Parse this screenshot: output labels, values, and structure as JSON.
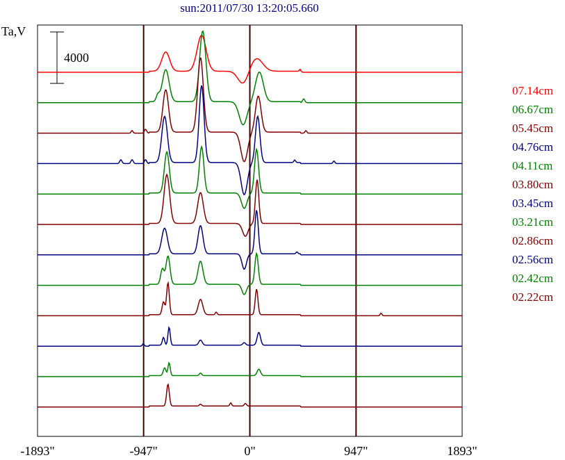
{
  "chart_data": {
    "type": "line",
    "title": "sun:2011/07/30 13:20:05.660",
    "ylabel": "Ta,V",
    "scale_bar_label": "4000",
    "xlim": [
      -1893,
      1893
    ],
    "xticks": [
      {
        "value": -1893,
        "label": "-1893\""
      },
      {
        "value": -947,
        "label": "-947\""
      },
      {
        "value": 0,
        "label": "0\""
      },
      {
        "value": 947,
        "label": "947\""
      },
      {
        "value": 1893,
        "label": "1893\""
      }
    ],
    "vlines": [
      -947,
      0,
      947
    ],
    "grid": false,
    "legend_position": "right",
    "colors": {
      "red": "#ff0000",
      "green": "#008000",
      "maroon": "#800000",
      "navy": "#000080"
    },
    "series": [
      {
        "name": "07.14cm",
        "color": "#ff0000",
        "peaks": [
          {
            "x": -750,
            "h": 1500,
            "w": 35
          },
          {
            "x": -430,
            "h": 2800,
            "w": 40
          },
          {
            "x": -60,
            "h": -1000,
            "w": 45
          },
          {
            "x": 60,
            "h": 1000,
            "w": 55
          },
          {
            "x": 450,
            "h": 150,
            "w": 8
          }
        ]
      },
      {
        "name": "06.67cm",
        "color": "#008000",
        "peaks": [
          {
            "x": -820,
            "h": 500,
            "w": 15
          },
          {
            "x": -750,
            "h": 2500,
            "w": 30
          },
          {
            "x": -420,
            "h": 5500,
            "w": 28
          },
          {
            "x": -60,
            "h": -1800,
            "w": 35
          },
          {
            "x": 85,
            "h": 2300,
            "w": 35
          },
          {
            "x": 480,
            "h": 300,
            "w": 10
          }
        ]
      },
      {
        "name": "05.45cm",
        "color": "#800000",
        "peaks": [
          {
            "x": -1050,
            "h": 200,
            "w": 8
          },
          {
            "x": -930,
            "h": 300,
            "w": 10
          },
          {
            "x": -750,
            "h": 3300,
            "w": 25
          },
          {
            "x": -440,
            "h": 5800,
            "w": 25
          },
          {
            "x": -50,
            "h": -2300,
            "w": 30
          },
          {
            "x": 75,
            "h": 2800,
            "w": 25
          },
          {
            "x": 500,
            "h": 200,
            "w": 8
          }
        ]
      },
      {
        "name": "04.76cm",
        "color": "#000080",
        "peaks": [
          {
            "x": -1150,
            "h": 300,
            "w": 10
          },
          {
            "x": -1050,
            "h": 300,
            "w": 10
          },
          {
            "x": -930,
            "h": 300,
            "w": 10
          },
          {
            "x": -760,
            "h": 3600,
            "w": 25
          },
          {
            "x": -430,
            "h": 6000,
            "w": 22
          },
          {
            "x": -50,
            "h": -2500,
            "w": 28
          },
          {
            "x": 70,
            "h": 3600,
            "w": 20
          },
          {
            "x": 400,
            "h": 200,
            "w": 8
          },
          {
            "x": 750,
            "h": 200,
            "w": 8
          }
        ]
      },
      {
        "name": "04.11cm",
        "color": "#008000",
        "peaks": [
          {
            "x": -740,
            "h": 3200,
            "w": 22
          },
          {
            "x": -430,
            "h": 3600,
            "w": 20
          },
          {
            "x": -50,
            "h": -1200,
            "w": 25
          },
          {
            "x": 60,
            "h": 3400,
            "w": 18
          }
        ]
      },
      {
        "name": "03.80cm",
        "color": "#800000",
        "peaks": [
          {
            "x": -740,
            "h": 3800,
            "w": 25
          },
          {
            "x": -440,
            "h": 2400,
            "w": 25
          },
          {
            "x": -40,
            "h": -1000,
            "w": 25
          },
          {
            "x": 65,
            "h": 3400,
            "w": 15
          }
        ]
      },
      {
        "name": "03.45cm",
        "color": "#000080",
        "peaks": [
          {
            "x": -760,
            "h": 2000,
            "w": 25
          },
          {
            "x": -440,
            "h": 2200,
            "w": 22
          },
          {
            "x": -50,
            "h": -1200,
            "w": 20
          },
          {
            "x": 60,
            "h": 3400,
            "w": 15
          },
          {
            "x": 420,
            "h": 150,
            "w": 8
          }
        ]
      },
      {
        "name": "03.21cm",
        "color": "#008000",
        "peaks": [
          {
            "x": -780,
            "h": 1200,
            "w": 15
          },
          {
            "x": -730,
            "h": 2200,
            "w": 18
          },
          {
            "x": -440,
            "h": 1800,
            "w": 22
          },
          {
            "x": -50,
            "h": -800,
            "w": 20
          },
          {
            "x": 60,
            "h": 2400,
            "w": 15
          }
        ]
      },
      {
        "name": "02.86cm",
        "color": "#800000",
        "peaks": [
          {
            "x": -770,
            "h": 1000,
            "w": 12
          },
          {
            "x": -730,
            "h": 2500,
            "w": 12
          },
          {
            "x": -440,
            "h": 1200,
            "w": 20
          },
          {
            "x": -300,
            "h": 200,
            "w": 8
          },
          {
            "x": 60,
            "h": 2000,
            "w": 12
          },
          {
            "x": 1170,
            "h": 200,
            "w": 8
          }
        ]
      },
      {
        "name": "02.56cm",
        "color": "#000080",
        "peaks": [
          {
            "x": -950,
            "h": 200,
            "w": 8
          },
          {
            "x": -770,
            "h": 600,
            "w": 10
          },
          {
            "x": -720,
            "h": 1400,
            "w": 10
          },
          {
            "x": -440,
            "h": 400,
            "w": 15
          },
          {
            "x": -50,
            "h": 200,
            "w": 12
          },
          {
            "x": 80,
            "h": 1000,
            "w": 15
          }
        ]
      },
      {
        "name": "02.42cm",
        "color": "#008000",
        "peaks": [
          {
            "x": -760,
            "h": 600,
            "w": 12
          },
          {
            "x": -720,
            "h": 1000,
            "w": 10
          },
          {
            "x": -440,
            "h": 200,
            "w": 10
          },
          {
            "x": 80,
            "h": 500,
            "w": 15
          }
        ]
      },
      {
        "name": "02.22cm",
        "color": "#800000",
        "peaks": [
          {
            "x": -730,
            "h": 1700,
            "w": 12
          },
          {
            "x": -440,
            "h": 150,
            "w": 10
          },
          {
            "x": -170,
            "h": 250,
            "w": 8
          },
          {
            "x": -40,
            "h": 200,
            "w": 10
          }
        ]
      }
    ]
  }
}
